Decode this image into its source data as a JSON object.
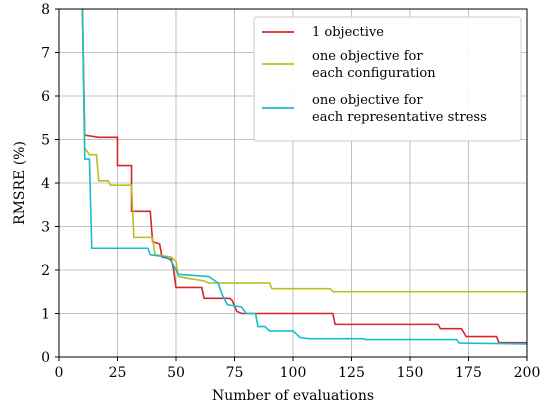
{
  "chart_data": {
    "type": "line",
    "xlabel": "Number of evaluations",
    "ylabel": "RMSRE (%)",
    "xlim": [
      0,
      200
    ],
    "ylim": [
      0,
      8
    ],
    "xticks": [
      "0",
      "25",
      "50",
      "75",
      "100",
      "125",
      "150",
      "175",
      "200"
    ],
    "yticks": [
      "0",
      "1",
      "2",
      "3",
      "4",
      "5",
      "6",
      "7",
      "8"
    ],
    "grid": true,
    "legend_position": "top-right",
    "series": [
      {
        "name": "1 objective",
        "color": "#d62728",
        "points": [
          [
            10,
            8.0
          ],
          [
            11,
            5.1
          ],
          [
            17,
            5.05
          ],
          [
            25,
            5.05
          ],
          [
            25,
            4.4
          ],
          [
            31,
            4.4
          ],
          [
            31,
            3.35
          ],
          [
            39,
            3.35
          ],
          [
            40,
            2.65
          ],
          [
            43,
            2.6
          ],
          [
            44,
            2.3
          ],
          [
            48,
            2.25
          ],
          [
            49,
            2.0
          ],
          [
            50,
            1.6
          ],
          [
            61,
            1.6
          ],
          [
            62,
            1.35
          ],
          [
            73,
            1.35
          ],
          [
            74,
            1.3
          ],
          [
            76,
            1.05
          ],
          [
            78,
            1.0
          ],
          [
            117,
            1.0
          ],
          [
            118,
            0.75
          ],
          [
            162,
            0.75
          ],
          [
            163,
            0.65
          ],
          [
            172,
            0.65
          ],
          [
            174,
            0.47
          ],
          [
            187,
            0.47
          ],
          [
            188,
            0.33
          ],
          [
            200,
            0.33
          ]
        ]
      },
      {
        "name": "one objective for\neach configuration",
        "color": "#bcbd22",
        "points": [
          [
            10,
            8.0
          ],
          [
            11,
            4.8
          ],
          [
            13,
            4.65
          ],
          [
            16,
            4.65
          ],
          [
            17,
            4.05
          ],
          [
            21,
            4.05
          ],
          [
            22,
            3.95
          ],
          [
            31,
            3.95
          ],
          [
            32,
            2.75
          ],
          [
            40,
            2.75
          ],
          [
            41,
            2.35
          ],
          [
            48,
            2.3
          ],
          [
            50,
            2.2
          ],
          [
            51,
            1.85
          ],
          [
            56,
            1.8
          ],
          [
            62,
            1.75
          ],
          [
            64,
            1.7
          ],
          [
            90,
            1.7
          ],
          [
            91,
            1.57
          ],
          [
            116,
            1.57
          ],
          [
            117,
            1.5
          ],
          [
            200,
            1.5
          ]
        ]
      },
      {
        "name": "one objective for\neach representative stress",
        "color": "#17becf",
        "points": [
          [
            10,
            8.0
          ],
          [
            11,
            4.55
          ],
          [
            13,
            4.55
          ],
          [
            14,
            2.5
          ],
          [
            38,
            2.5
          ],
          [
            39,
            2.35
          ],
          [
            46,
            2.3
          ],
          [
            48,
            2.2
          ],
          [
            51,
            1.9
          ],
          [
            64,
            1.85
          ],
          [
            68,
            1.7
          ],
          [
            70,
            1.4
          ],
          [
            72,
            1.2
          ],
          [
            78,
            1.15
          ],
          [
            80,
            1.0
          ],
          [
            84,
            1.0
          ],
          [
            85,
            0.7
          ],
          [
            88,
            0.7
          ],
          [
            90,
            0.6
          ],
          [
            100,
            0.6
          ],
          [
            103,
            0.45
          ],
          [
            107,
            0.42
          ],
          [
            130,
            0.42
          ],
          [
            131,
            0.4
          ],
          [
            170,
            0.4
          ],
          [
            171,
            0.32
          ],
          [
            200,
            0.3
          ]
        ]
      }
    ]
  }
}
